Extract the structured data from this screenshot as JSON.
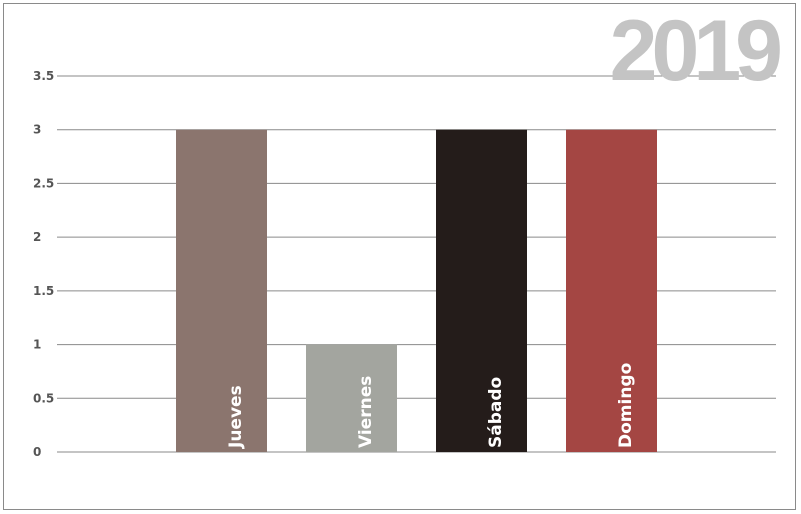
{
  "chart_data": {
    "type": "bar",
    "title": "2019",
    "categories": [
      "Jueves",
      "Viernes",
      "Sábado",
      "Domingo"
    ],
    "values": [
      3,
      1,
      3,
      3
    ],
    "colors": [
      "#8b756e",
      "#a3a59f",
      "#241c1a",
      "#a44643"
    ],
    "ylim": [
      0,
      3.5
    ],
    "yticks": [
      "0",
      "0.5",
      "1",
      "1.5",
      "2",
      "2.5",
      "3",
      "3.5"
    ],
    "grid": true,
    "grid_color": "#8a8a8a",
    "xlabel": "",
    "ylabel": "",
    "legend": "none",
    "category_labels_inside_bars": true
  }
}
